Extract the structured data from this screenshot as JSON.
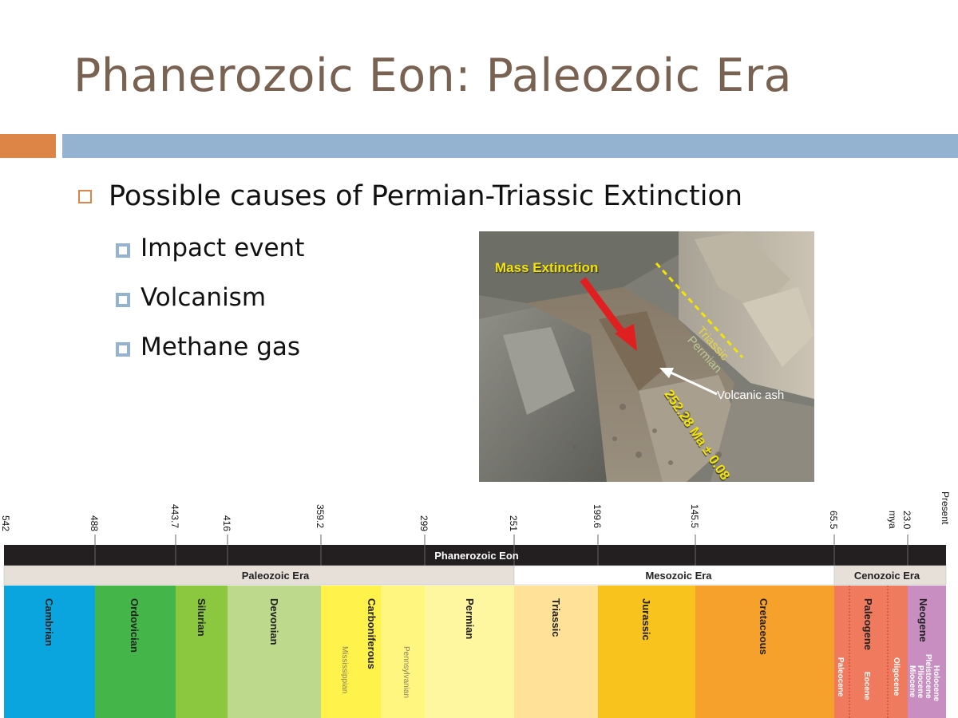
{
  "slide": {
    "title": "Phanerozoic Eon: Paleozoic Era",
    "bullet": "Possible causes of Permian-Triassic Extinction",
    "sub_bullets": [
      "Impact event",
      "Volcanism",
      "Methane gas"
    ]
  },
  "photo": {
    "mass_extinction": "Mass Extinction",
    "triassic": "Triassic",
    "permian": "Permian",
    "volcanic_ash": "Volcanic ash",
    "date": "252.28 Ma ± 0.08"
  },
  "timescale": {
    "ticks": [
      "542",
      "488",
      "443.7",
      "416",
      "359.2",
      "299",
      "251",
      "199.6",
      "145.5",
      "65.5",
      "23.0",
      "mya",
      "Present"
    ],
    "eon": "Phanerozoic Eon",
    "eras": [
      "Paleozoic Era",
      "Mesozoic Era",
      "Cenozoic Era"
    ],
    "periods": [
      "Cambrian",
      "Ordovician",
      "Silurian",
      "Devonian",
      "Carboniferous",
      "Permian",
      "Triassic",
      "Jurassic",
      "Cretaceous",
      "Paleogene",
      "Neogene"
    ],
    "subperiods": [
      "Mississippian",
      "Pennsylvanian"
    ],
    "epochs": [
      "Paleocene",
      "Eocene",
      "Oligocene",
      "Miocene",
      "Pliocene",
      "Pleistocene",
      "Holocene"
    ],
    "colors": {
      "cambrian": "#0aa5de",
      "ordovician": "#44b649",
      "silurian": "#8cc83f",
      "devonian": "#bcd98c",
      "carboniferous": "#fff24a",
      "permian": "#fff7a0",
      "triassic": "#ffe197",
      "jurassic": "#f9c31d",
      "cretaceous": "#f6a12c",
      "paleogene": "#f07a5d",
      "neogene": "#c98ec1",
      "eon": "#231f20",
      "era": "#e6e0d8"
    }
  }
}
